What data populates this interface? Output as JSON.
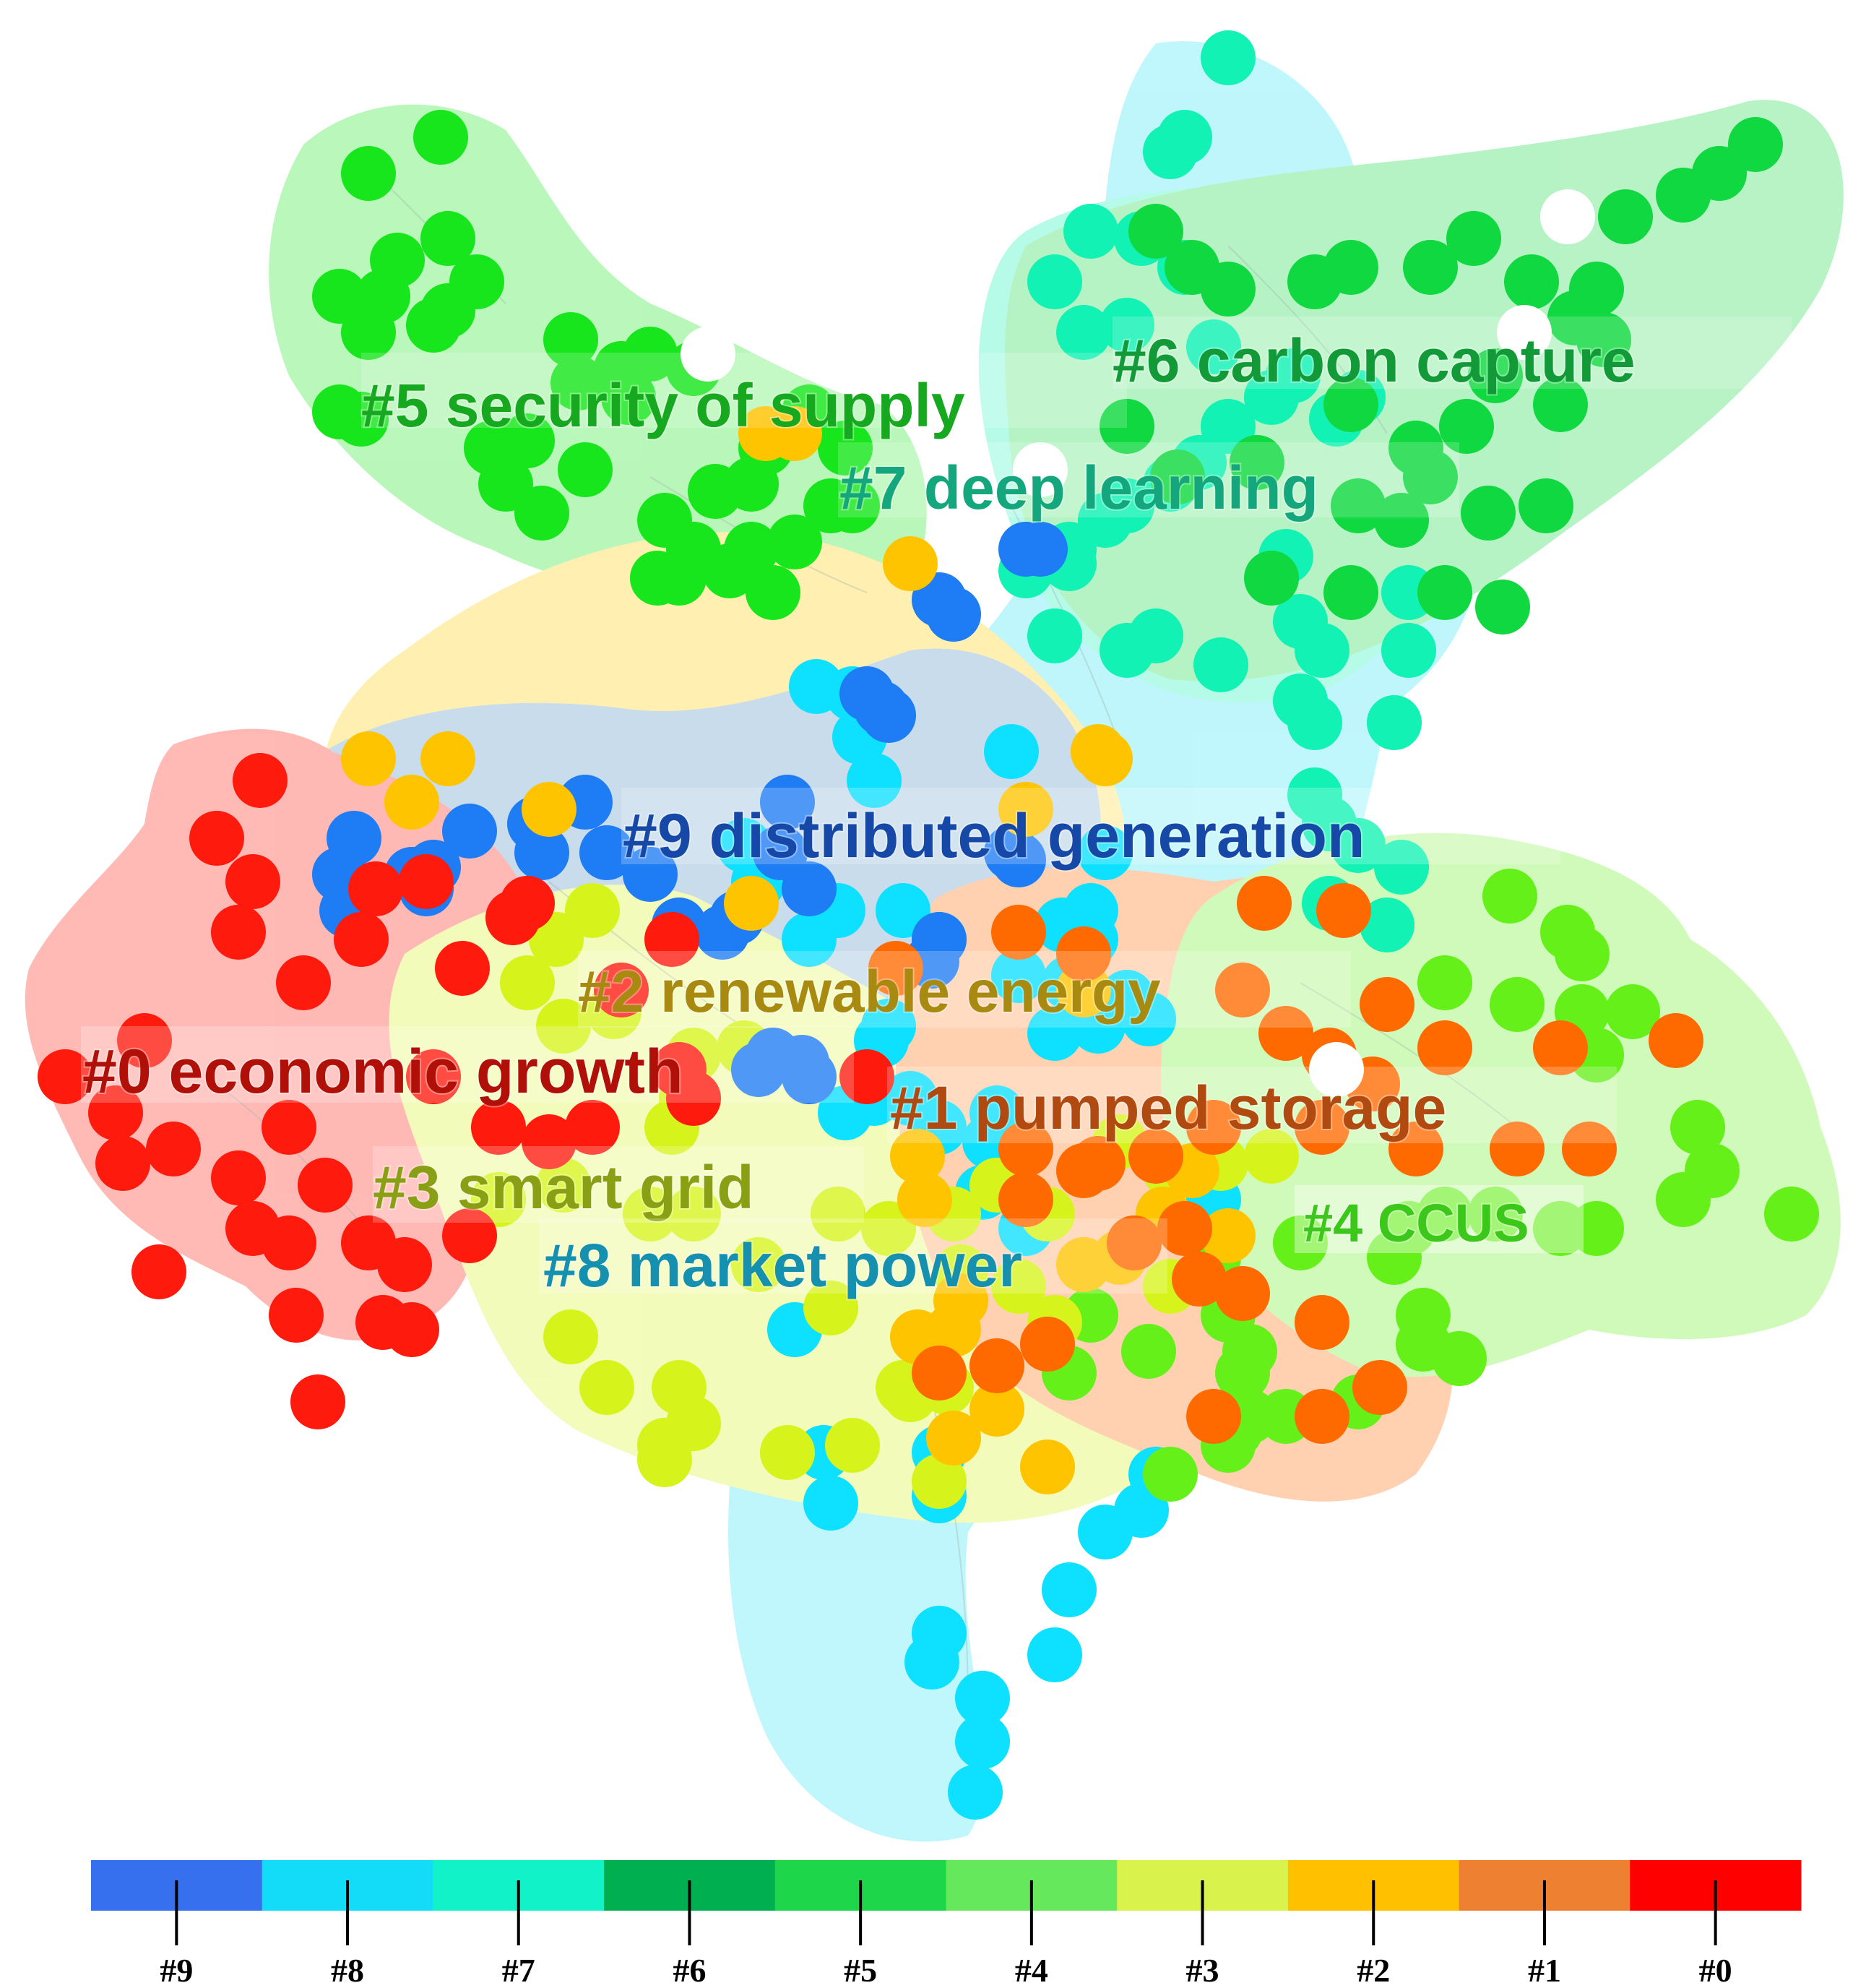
{
  "clusters": [
    {
      "id": "c0",
      "label": "#0 economic growth",
      "color": "#FF1A0E",
      "label_color": "#B01008"
    },
    {
      "id": "c1",
      "label": "#1 pumped storage",
      "color": "#FF6A00",
      "label_color": "#B04A10"
    },
    {
      "id": "c2",
      "label": "#2 renewable energy",
      "color": "#FFC400",
      "label_color": "#A88A10"
    },
    {
      "id": "c3",
      "label": "#3 smart grid",
      "color": "#D6F41C",
      "label_color": "#8AA014"
    },
    {
      "id": "c4",
      "label": "#4 CCUS",
      "color": "#66F01A",
      "label_color": "#3CC81A"
    },
    {
      "id": "c5",
      "label": "#5 security of supply",
      "color": "#18E61C",
      "label_color": "#16A81E"
    },
    {
      "id": "c6",
      "label": "#6 carbon capture",
      "color": "#10D840",
      "label_color": "#129A38"
    },
    {
      "id": "c7",
      "label": "#7 deep learning",
      "color": "#12F2B4",
      "label_color": "#14A77E"
    },
    {
      "id": "c8",
      "label": "#8 market power",
      "color": "#0EE0FF",
      "label_color": "#1590AE"
    },
    {
      "id": "c9",
      "label": "#9 distributed generation",
      "color": "#1E7CF4",
      "label_color": "#1648A8"
    }
  ],
  "legend": {
    "segments": [
      {
        "label": "#9",
        "color": "#3670EE"
      },
      {
        "label": "#8",
        "color": "#12DCF8"
      },
      {
        "label": "#7",
        "color": "#12F2C8"
      },
      {
        "label": "#6",
        "color": "#00B050"
      },
      {
        "label": "#5",
        "color": "#1ED64A"
      },
      {
        "label": "#4",
        "color": "#66E85C"
      },
      {
        "label": "#3",
        "color": "#DAF24C"
      },
      {
        "label": "#2",
        "color": "#FFC000"
      },
      {
        "label": "#1",
        "color": "#EE8032"
      },
      {
        "label": "#0",
        "color": "#FF0000"
      }
    ]
  }
}
